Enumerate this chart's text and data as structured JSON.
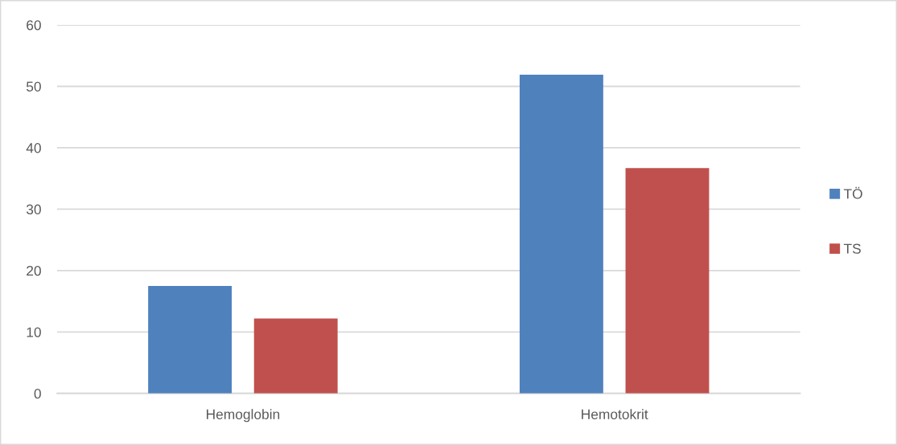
{
  "chart_data": {
    "type": "bar",
    "categories": [
      "Hemoglobin",
      "Hemotokrit"
    ],
    "series": [
      {
        "name": "TÖ",
        "color": "#4f81bd",
        "values": [
          17.5,
          51.9
        ]
      },
      {
        "name": "TS",
        "color": "#c0504d",
        "values": [
          12.2,
          36.7
        ]
      }
    ],
    "ylim": [
      0,
      60
    ],
    "yticks": [
      0,
      10,
      20,
      30,
      40,
      50,
      60
    ],
    "grid": "y",
    "legend": "right"
  }
}
